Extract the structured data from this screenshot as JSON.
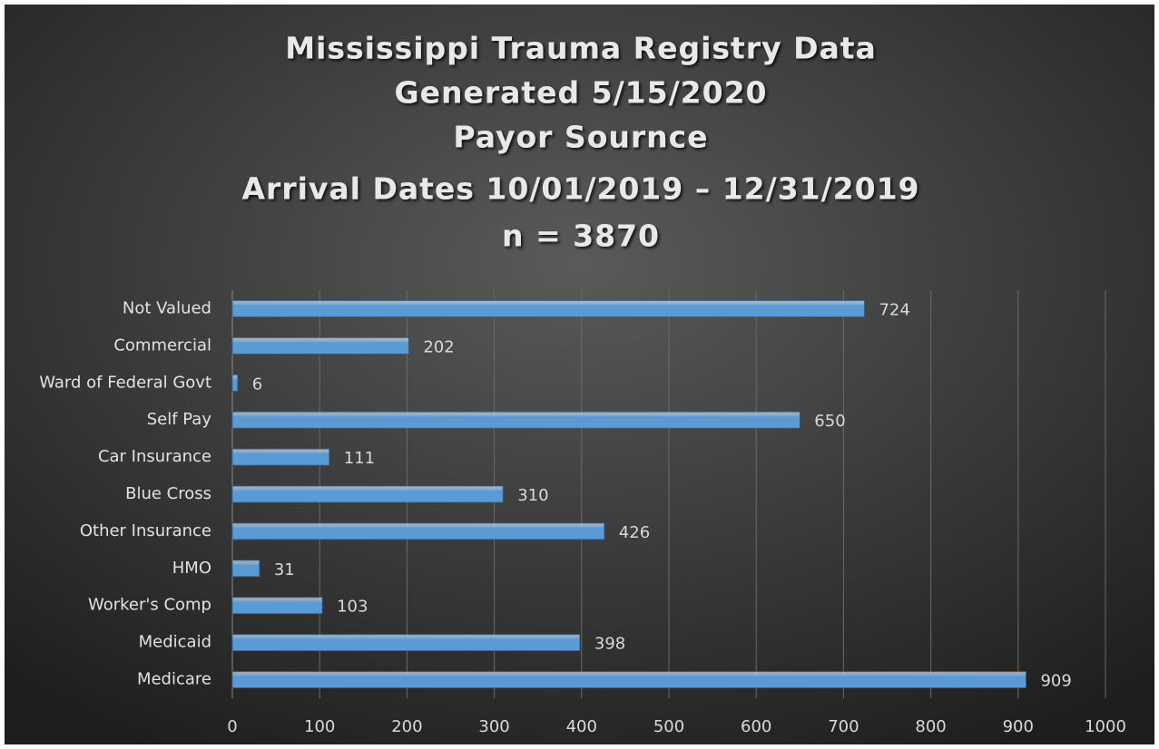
{
  "chart_data": {
    "type": "hbar",
    "title": [
      "Mississippi Trauma Registry Data",
      "Generated 5/15/2020",
      "Payor Sournce",
      "Arrival Dates 10/01/2019 – 12/31/2019",
      "n = 3870"
    ],
    "categories": [
      "Not Valued",
      "Commercial",
      "Ward of Federal Govt",
      "Self Pay",
      "Car Insurance",
      "Blue Cross",
      "Other Insurance",
      "HMO",
      "Worker's Comp",
      "Medicaid",
      "Medicare"
    ],
    "values": [
      724,
      202,
      6,
      650,
      111,
      310,
      426,
      31,
      103,
      398,
      909
    ],
    "color": "#5b9bd5",
    "xlim": [
      0,
      1000
    ],
    "xticks": [
      0,
      100,
      200,
      300,
      400,
      500,
      600,
      700,
      800,
      900,
      1000
    ],
    "grid": true
  }
}
